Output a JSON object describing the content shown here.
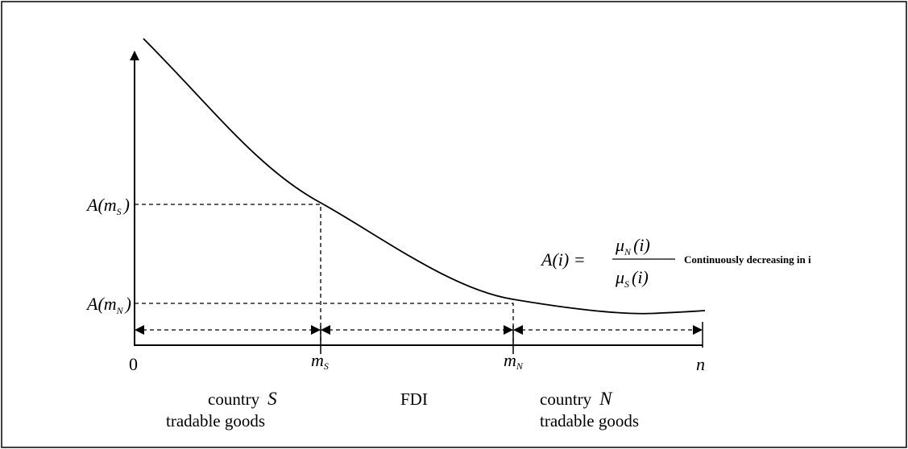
{
  "y_labels": [
    {
      "main": "A(m",
      "sub": "S",
      "tail": ")"
    },
    {
      "main": "A(m",
      "sub": "N",
      "tail": ")"
    }
  ],
  "axis_labels": {
    "origin": "0",
    "x_end": "n"
  },
  "x_labels": [
    {
      "main": "m",
      "sub": "S"
    },
    {
      "main": "m",
      "sub": "N"
    }
  ],
  "formula": {
    "lhs": "A(i) =",
    "numerator": {
      "main": "μ",
      "sub": "N",
      "tail": "(i)"
    },
    "denominator": {
      "main": "μ",
      "sub": "S",
      "tail": "(i)"
    }
  },
  "annotation": "Continuously decreasing in i",
  "regions": [
    {
      "line1": "country",
      "country": "S",
      "line2": "tradable goods"
    },
    {
      "line1": "FDI"
    },
    {
      "line1": "country",
      "country": "N",
      "line2": "tradable goods"
    }
  ]
}
